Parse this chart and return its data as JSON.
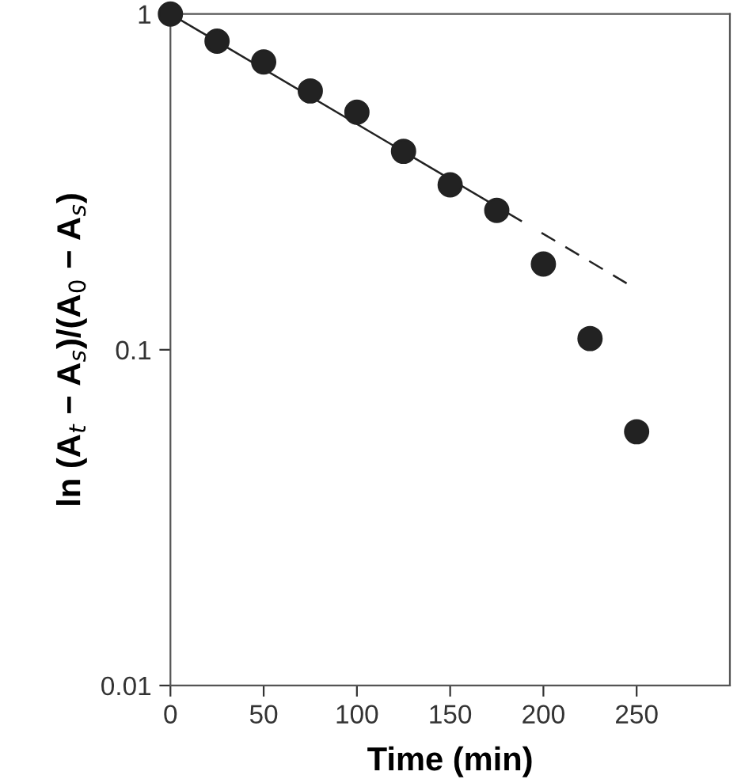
{
  "chart_data": {
    "type": "scatter",
    "xlabel": "Time (min)",
    "ylabel": "ln (A$_{t}$ − A$_{s}$)/(A$_{0}$ − A$_{s}$)",
    "x": [
      0,
      25,
      50,
      75,
      100,
      125,
      150,
      175,
      200,
      225,
      250
    ],
    "series": [
      {
        "color": "#222222",
        "marker": "circle",
        "values": [
          1.0,
          0.83,
          0.72,
          0.59,
          0.51,
          0.39,
          0.31,
          0.26,
          0.18,
          0.108,
          0.057
        ]
      },
      {
        "type": "line",
        "color": "#222222",
        "marker": "none",
        "line_style": "solid",
        "x": [
          0,
          188
        ],
        "values": [
          1.0,
          0.242
        ]
      },
      {
        "type": "line",
        "color": "#222222",
        "marker": "none",
        "line_style": "dashed",
        "x": [
          199,
          247
        ],
        "values": [
          0.223,
          0.155
        ]
      }
    ],
    "log": "y",
    "xlim": [
      0,
      300
    ],
    "xticks": [
      0,
      50,
      100,
      150,
      200,
      250
    ],
    "ylim": [
      0.01,
      1
    ],
    "yticks": [
      0.01,
      0.1,
      1
    ],
    "grid": false,
    "legend": false
  }
}
